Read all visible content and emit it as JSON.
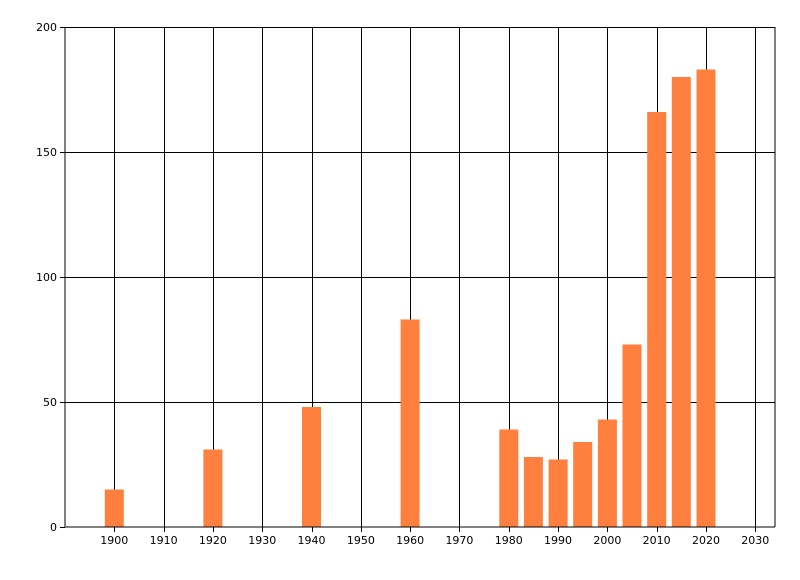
{
  "chart_data": {
    "type": "bar",
    "title": "",
    "xlabel": "",
    "ylabel": "",
    "x": [
      1900,
      1920,
      1940,
      1960,
      1980,
      1985,
      1990,
      1995,
      2000,
      2005,
      2010,
      2015,
      2020
    ],
    "values": [
      15,
      31,
      48,
      83,
      39,
      28,
      27,
      34,
      43,
      73,
      166,
      180,
      183
    ],
    "xlim": [
      1890,
      2034
    ],
    "ylim": [
      0,
      200
    ],
    "x_ticks": [
      "1900",
      "1910",
      "1920",
      "1930",
      "1940",
      "1950",
      "1960",
      "1970",
      "1980",
      "1990",
      "2000",
      "2010",
      "2020",
      "2030"
    ],
    "y_ticks": [
      "0",
      "50",
      "100",
      "150",
      "200"
    ],
    "grid": true,
    "legend": "none",
    "bar_color": "#ff7f3f"
  }
}
